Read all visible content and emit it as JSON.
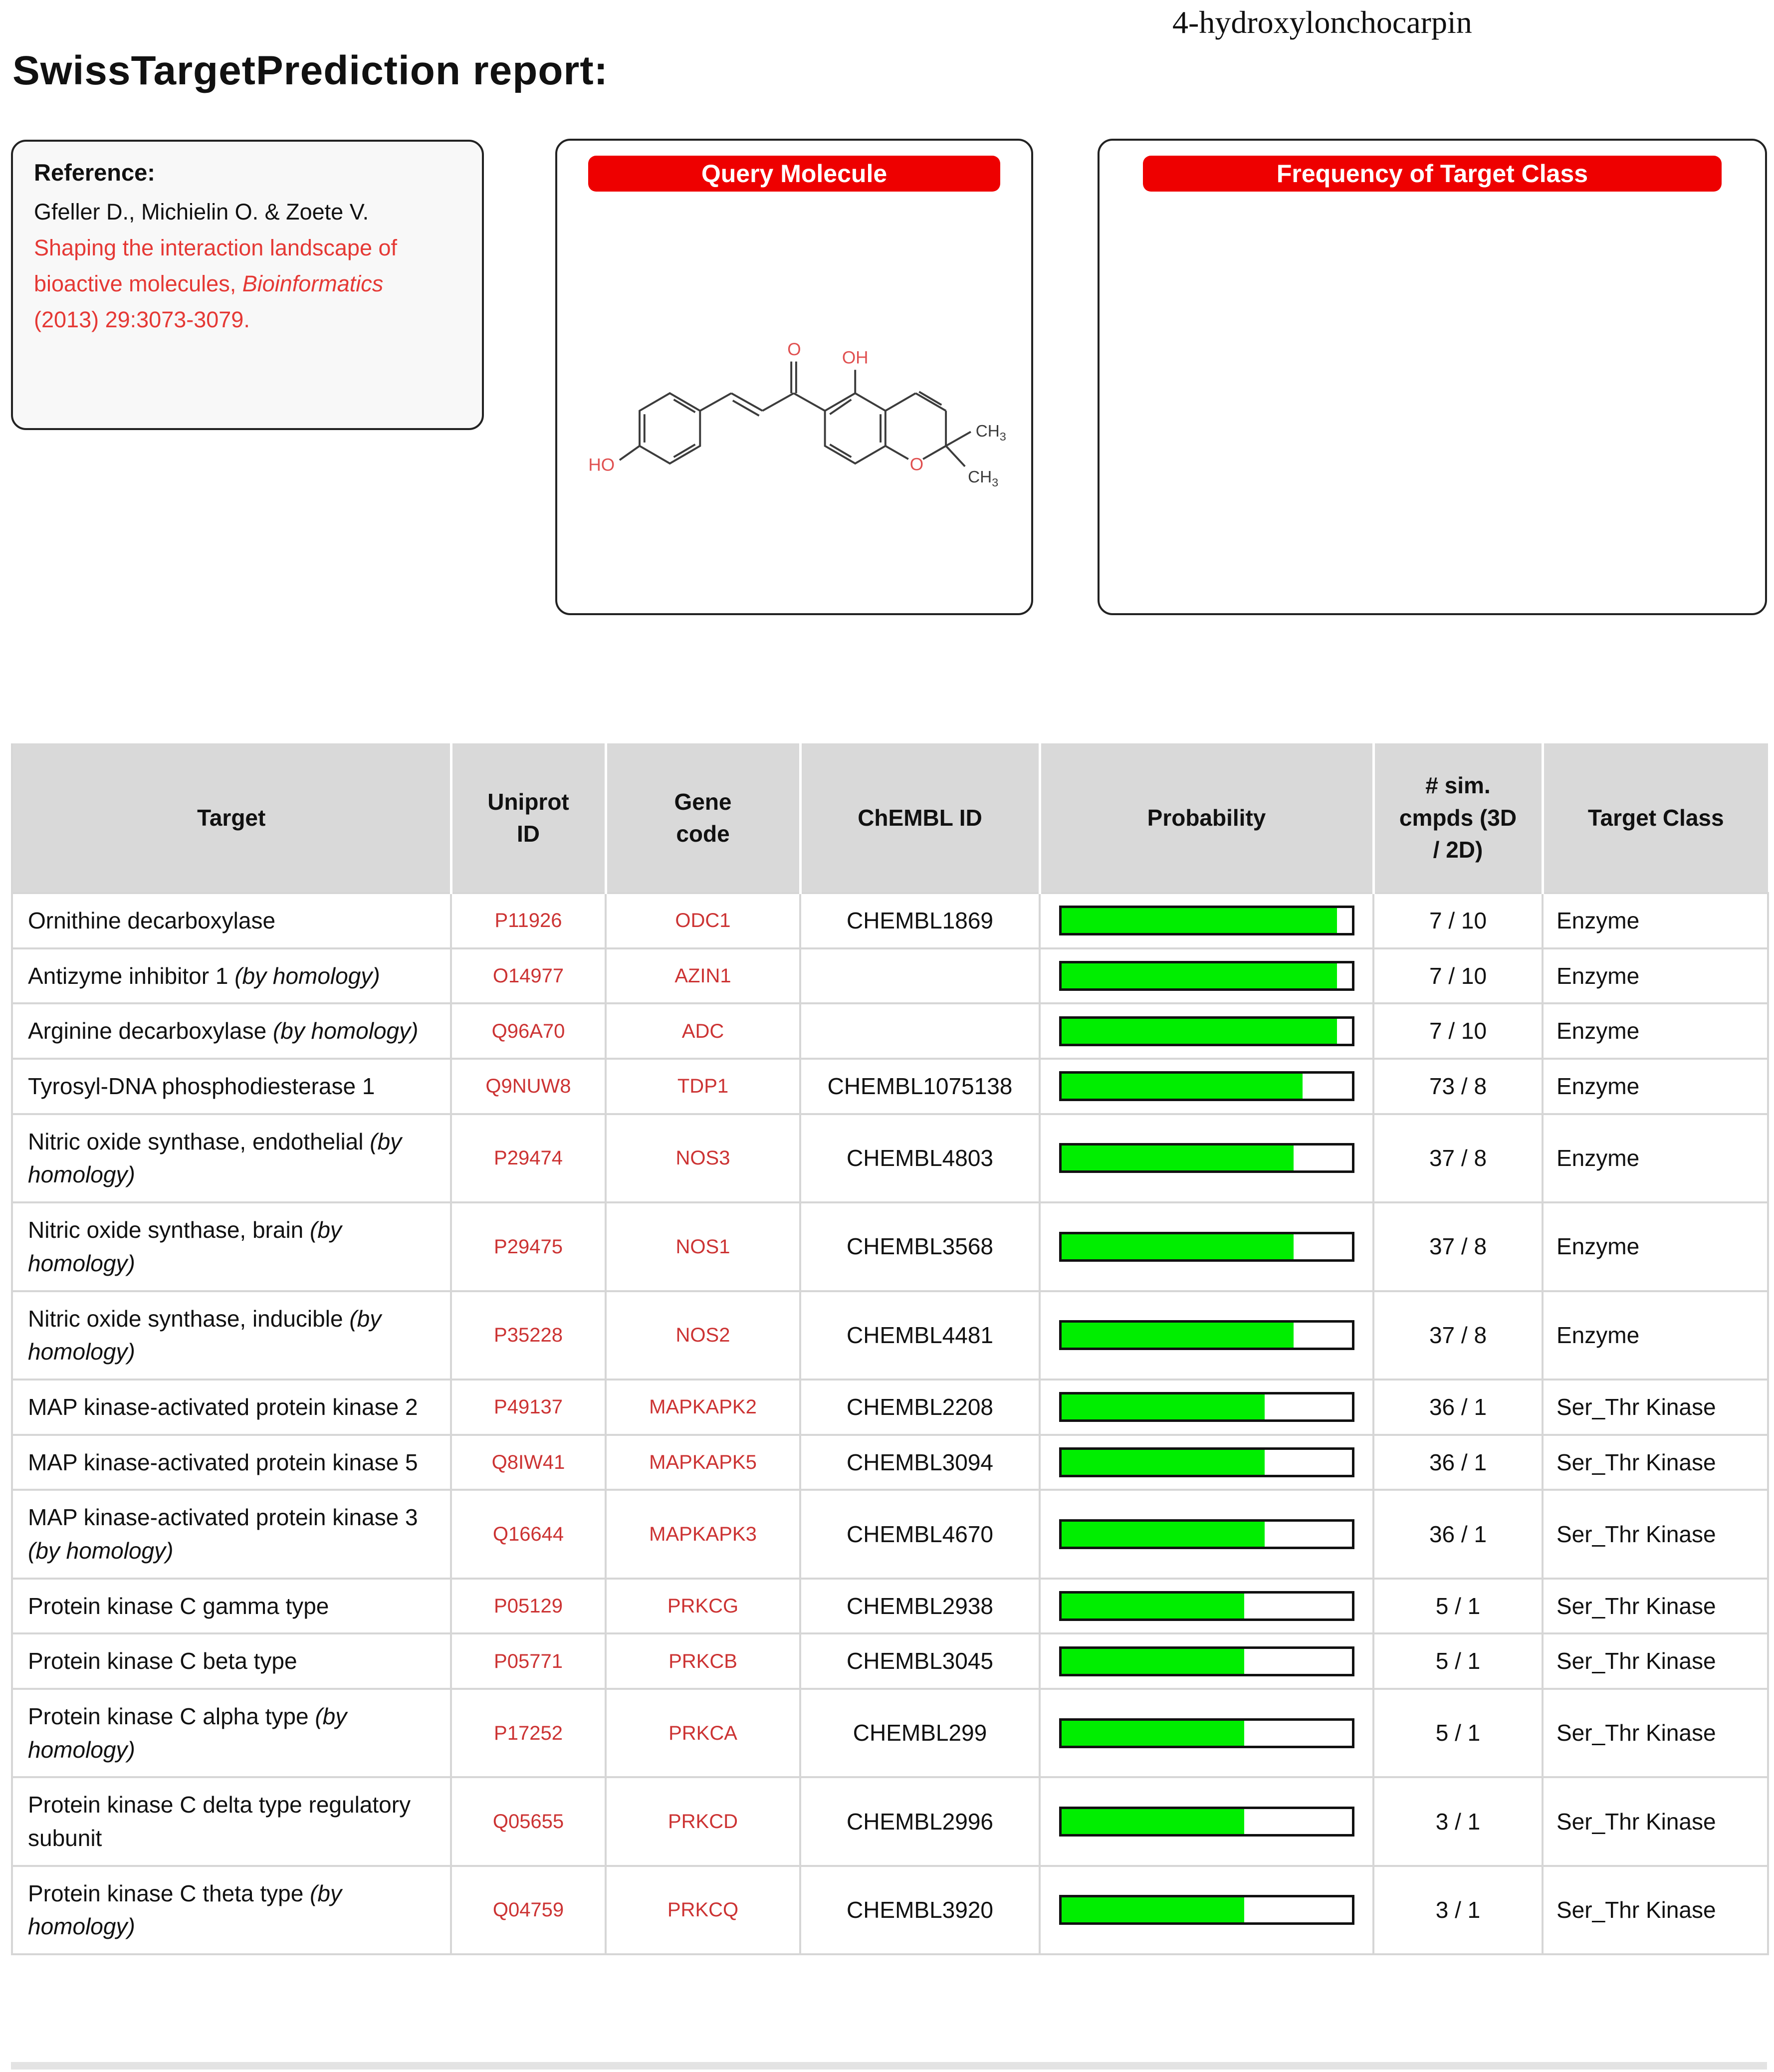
{
  "page": {
    "title": "SwissTargetPrediction report:",
    "compound": "4-hydroxylonchocarpin"
  },
  "colors": {
    "accent_red": "#ee0000",
    "link_red": "#cc3333",
    "ref_red": "#e53935",
    "bar_green": "#00ee00",
    "header_bg": "#d9d9d9"
  },
  "reference": {
    "heading": "Reference:",
    "authors": "Gfeller D., Michielin O. & Zoete V.",
    "red_line1": "Shaping the interaction landscape of",
    "red_line2_pre": "bioactive molecules, ",
    "red_line2_italic": "Bioinformatics",
    "red_line3": "(2013) 29:3073-3079."
  },
  "panels": {
    "query": {
      "banner": "Query Molecule"
    },
    "frequency": {
      "banner": "Frequency of Target Class"
    }
  },
  "molecule": {
    "carbonyl_o": "O",
    "hydroxyl_top": "OH",
    "hydroxyl_left": "HO",
    "ring_o": "O",
    "methyl1": "CH",
    "methyl1_sub": "3",
    "methyl2": "CH",
    "methyl2_sub": "3"
  },
  "table": {
    "headers": [
      "Target",
      "Uniprot\nID",
      "Gene\ncode",
      "ChEMBL ID",
      "Probability",
      "# sim.\ncmpds (3D\n/ 2D)",
      "Target Class"
    ],
    "rows": [
      {
        "target": "Ornithine decarboxylase",
        "target_italic": "",
        "uniprot": "P11926",
        "gene": "ODC1",
        "chembl": "CHEMBL1869",
        "probability": 0.95,
        "sim": "7 / 10",
        "target_class": "Enzyme"
      },
      {
        "target": "Antizyme inhibitor 1 ",
        "target_italic": "(by homology)",
        "uniprot": "O14977",
        "gene": "AZIN1",
        "chembl": "",
        "probability": 0.95,
        "sim": "7 / 10",
        "target_class": "Enzyme"
      },
      {
        "target": "Arginine decarboxylase ",
        "target_italic": "(by homology)",
        "uniprot": "Q96A70",
        "gene": "ADC",
        "chembl": "",
        "probability": 0.95,
        "sim": "7 / 10",
        "target_class": "Enzyme"
      },
      {
        "target": "Tyrosyl-DNA phosphodiesterase 1",
        "target_italic": "",
        "uniprot": "Q9NUW8",
        "gene": "TDP1",
        "chembl": "CHEMBL1075138",
        "probability": 0.83,
        "sim": "73 / 8",
        "target_class": "Enzyme"
      },
      {
        "target": "Nitric oxide synthase, endothelial ",
        "target_italic": "(by homology)",
        "uniprot": "P29474",
        "gene": "NOS3",
        "chembl": "CHEMBL4803",
        "probability": 0.8,
        "sim": "37 / 8",
        "target_class": "Enzyme"
      },
      {
        "target": "Nitric oxide synthase, brain ",
        "target_italic": "(by homology)",
        "uniprot": "P29475",
        "gene": "NOS1",
        "chembl": "CHEMBL3568",
        "probability": 0.8,
        "sim": "37 / 8",
        "target_class": "Enzyme"
      },
      {
        "target": "Nitric oxide synthase, inducible ",
        "target_italic": "(by homology)",
        "uniprot": "P35228",
        "gene": "NOS2",
        "chembl": "CHEMBL4481",
        "probability": 0.8,
        "sim": "37 / 8",
        "target_class": "Enzyme"
      },
      {
        "target": "MAP kinase-activated protein kinase 2",
        "target_italic": "",
        "uniprot": "P49137",
        "gene": "MAPKAPK2",
        "chembl": "CHEMBL2208",
        "probability": 0.7,
        "sim": "36 / 1",
        "target_class": "Ser_Thr Kinase"
      },
      {
        "target": "MAP kinase-activated protein kinase 5",
        "target_italic": "",
        "uniprot": "Q8IW41",
        "gene": "MAPKAPK5",
        "chembl": "CHEMBL3094",
        "probability": 0.7,
        "sim": "36 / 1",
        "target_class": "Ser_Thr Kinase"
      },
      {
        "target": "MAP kinase-activated protein kinase 3 ",
        "target_italic": "(by homology)",
        "uniprot": "Q16644",
        "gene": "MAPKAPK3",
        "chembl": "CHEMBL4670",
        "probability": 0.7,
        "sim": "36 / 1",
        "target_class": "Ser_Thr Kinase"
      },
      {
        "target": "Protein kinase C gamma type",
        "target_italic": "",
        "uniprot": "P05129",
        "gene": "PRKCG",
        "chembl": "CHEMBL2938",
        "probability": 0.63,
        "sim": "5 / 1",
        "target_class": "Ser_Thr Kinase"
      },
      {
        "target": "Protein kinase C beta type",
        "target_italic": "",
        "uniprot": "P05771",
        "gene": "PRKCB",
        "chembl": "CHEMBL3045",
        "probability": 0.63,
        "sim": "5 / 1",
        "target_class": "Ser_Thr Kinase"
      },
      {
        "target": "Protein kinase C alpha type ",
        "target_italic": "(by homology)",
        "uniprot": "P17252",
        "gene": "PRKCA",
        "chembl": "CHEMBL299",
        "probability": 0.63,
        "sim": "5 / 1",
        "target_class": "Ser_Thr Kinase"
      },
      {
        "target": "Protein kinase C delta type regulatory subunit",
        "target_italic": "",
        "uniprot": "Q05655",
        "gene": "PRKCD",
        "chembl": "CHEMBL2996",
        "probability": 0.63,
        "sim": "3 / 1",
        "target_class": "Ser_Thr Kinase"
      },
      {
        "target": "Protein kinase C theta type ",
        "target_italic": "(by homology)",
        "uniprot": "Q04759",
        "gene": "PRKCQ",
        "chembl": "CHEMBL3920",
        "probability": 0.63,
        "sim": "3 / 1",
        "target_class": "Ser_Thr Kinase"
      }
    ]
  }
}
